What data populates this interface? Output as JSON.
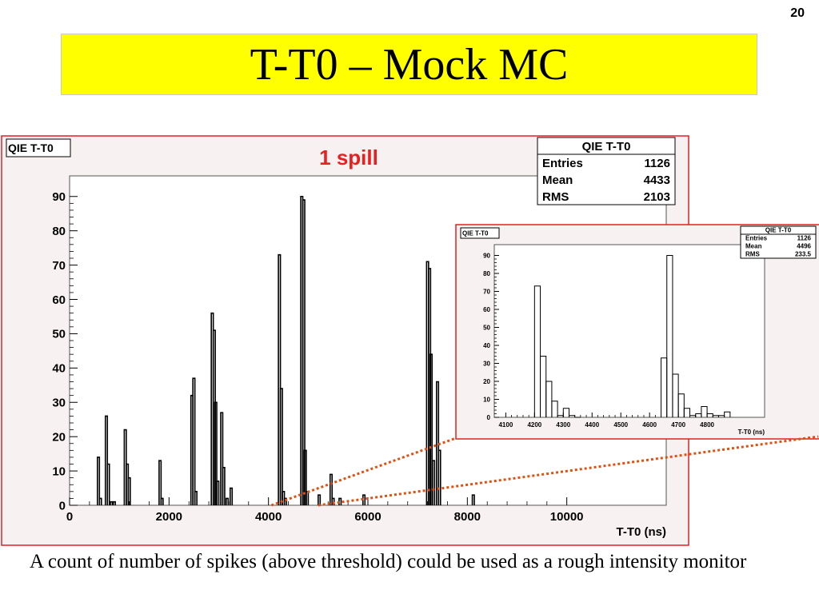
{
  "slide": {
    "number": "20",
    "title": "T-T0 – Mock MC",
    "caption": "A count of number of spikes (above threshold) could be used as a rough intensity monitor"
  },
  "colors": {
    "title_bg": "#ffff00",
    "frame": "#e02020",
    "plot_bg": "#f8f1f1",
    "annotation": "#e82020",
    "zoom_line": "#e05010"
  },
  "chart_data": [
    {
      "type": "histogram",
      "hist_name": "QIE T-T0",
      "annotation": "1 spill",
      "xlabel": "T-T0 (ns)",
      "ylabel": "",
      "xlim": [
        0,
        12000
      ],
      "ylim": [
        0,
        96
      ],
      "xticks": [
        0,
        2000,
        4000,
        6000,
        8000,
        10000
      ],
      "xtick_labels": [
        "0",
        "2000",
        "4000",
        "6000",
        "8000",
        "10000"
      ],
      "yticks": [
        0,
        10,
        20,
        30,
        40,
        50,
        60,
        70,
        80,
        90
      ],
      "ytick_labels": [
        "0",
        "10",
        "20",
        "30",
        "40",
        "50",
        "60",
        "70",
        "80",
        "90"
      ],
      "stats": {
        "title": "QIE T-T0",
        "rows": [
          {
            "label": "Entries",
            "value": "1126"
          },
          {
            "label": "Mean",
            "value": "4433"
          },
          {
            "label": "RMS",
            "value": "2103"
          }
        ]
      },
      "bins": [
        [
          560,
          14
        ],
        [
          600,
          2
        ],
        [
          720,
          26
        ],
        [
          760,
          12
        ],
        [
          820,
          1
        ],
        [
          880,
          1
        ],
        [
          1100,
          22
        ],
        [
          1140,
          12
        ],
        [
          1180,
          8
        ],
        [
          1800,
          13
        ],
        [
          1840,
          2
        ],
        [
          2440,
          32
        ],
        [
          2480,
          37
        ],
        [
          2520,
          4
        ],
        [
          2850,
          56
        ],
        [
          2890,
          51
        ],
        [
          2920,
          30
        ],
        [
          2960,
          7
        ],
        [
          3040,
          27
        ],
        [
          3080,
          11
        ],
        [
          3150,
          2
        ],
        [
          3230,
          5
        ],
        [
          4200,
          73
        ],
        [
          4240,
          34
        ],
        [
          4280,
          4
        ],
        [
          4320,
          2
        ],
        [
          4650,
          90
        ],
        [
          4690,
          89
        ],
        [
          4720,
          16
        ],
        [
          4760,
          4
        ],
        [
          5000,
          3
        ],
        [
          5240,
          9
        ],
        [
          5280,
          2
        ],
        [
          5420,
          2
        ],
        [
          5900,
          3
        ],
        [
          7180,
          71
        ],
        [
          7220,
          69
        ],
        [
          7250,
          44
        ],
        [
          7300,
          13
        ],
        [
          7380,
          36
        ],
        [
          7420,
          16
        ],
        [
          8100,
          3
        ]
      ]
    },
    {
      "type": "histogram",
      "hist_name": "QIE T-T0",
      "xlabel": "T-T0 (ns)",
      "ylabel": "",
      "xlim": [
        4060,
        5000
      ],
      "ylim": [
        0,
        96
      ],
      "xticks": [
        4100,
        4200,
        4300,
        4400,
        4500,
        4600,
        4700,
        4800
      ],
      "xtick_labels": [
        "4100",
        "4200",
        "4300",
        "4400",
        "4500",
        "4600",
        "4700",
        "4800"
      ],
      "yticks": [
        0,
        10,
        20,
        30,
        40,
        50,
        60,
        70,
        80,
        90
      ],
      "ytick_labels": [
        "0",
        "10",
        "20",
        "30",
        "40",
        "50",
        "60",
        "70",
        "80",
        "90"
      ],
      "stats": {
        "title": "QIE T-T0",
        "rows": [
          {
            "label": "Entries",
            "value": "1126"
          },
          {
            "label": "Mean",
            "value": "4496"
          },
          {
            "label": "RMS",
            "value": "233.5"
          }
        ]
      },
      "bins": [
        [
          4200,
          4220,
          73
        ],
        [
          4220,
          4240,
          34
        ],
        [
          4240,
          4260,
          20
        ],
        [
          4260,
          4280,
          9
        ],
        [
          4280,
          4300,
          1
        ],
        [
          4300,
          4320,
          5
        ],
        [
          4320,
          4340,
          1
        ],
        [
          4340,
          4360,
          0
        ],
        [
          4640,
          4660,
          33
        ],
        [
          4660,
          4680,
          90
        ],
        [
          4680,
          4700,
          24
        ],
        [
          4700,
          4720,
          13
        ],
        [
          4720,
          4740,
          5
        ],
        [
          4740,
          4760,
          1
        ],
        [
          4760,
          4780,
          2
        ],
        [
          4780,
          4800,
          6
        ],
        [
          4800,
          4820,
          2
        ],
        [
          4820,
          4840,
          1
        ],
        [
          4840,
          4860,
          1
        ],
        [
          4860,
          4880,
          3
        ]
      ]
    }
  ]
}
